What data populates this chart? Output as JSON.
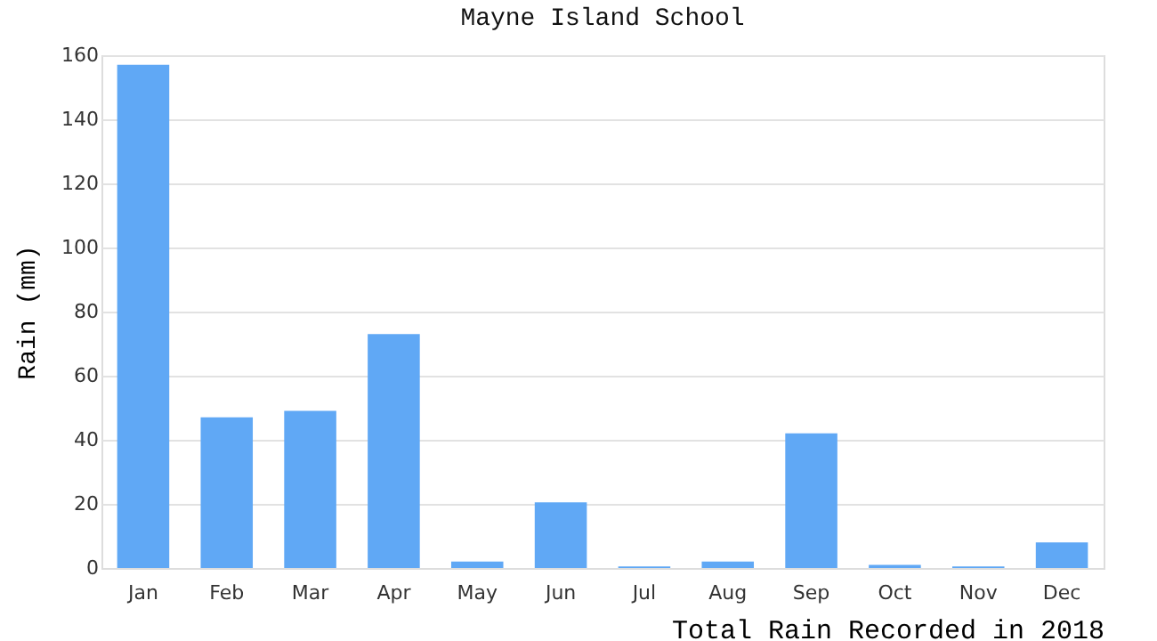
{
  "chart_data": {
    "type": "bar",
    "title": "Mayne Island School",
    "xlabel": "Total Rain Recorded in 2018",
    "ylabel": "Rain (mm)",
    "categories": [
      "Jan",
      "Feb",
      "Mar",
      "Apr",
      "May",
      "Jun",
      "Jul",
      "Aug",
      "Sep",
      "Oct",
      "Nov",
      "Dec"
    ],
    "values": [
      157,
      47,
      49,
      73,
      2,
      20.5,
      0.5,
      2,
      42,
      1,
      0.5,
      8
    ],
    "color": "#60a8f5",
    "ylim": [
      0,
      160
    ],
    "yticks": [
      0,
      20,
      40,
      60,
      80,
      100,
      120,
      140,
      160
    ],
    "grid": "y"
  }
}
